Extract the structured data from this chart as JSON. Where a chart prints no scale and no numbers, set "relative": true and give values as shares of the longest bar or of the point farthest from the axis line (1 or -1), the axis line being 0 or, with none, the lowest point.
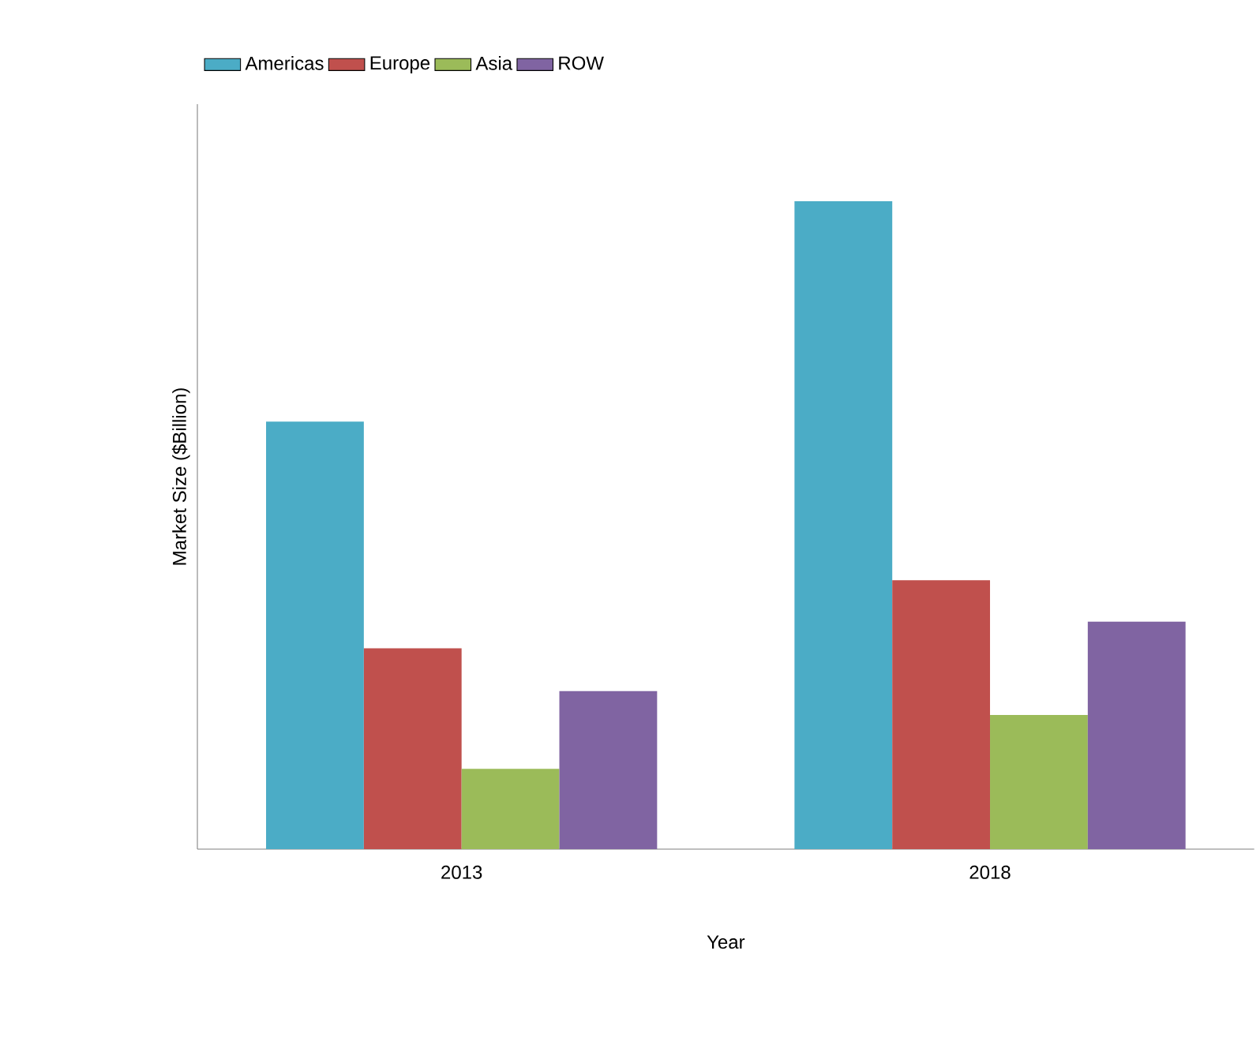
{
  "chart_data": {
    "type": "bar",
    "relative": true,
    "xlabel": "Year",
    "ylabel": "Market Size ($Billion)",
    "categories": [
      "2013",
      "2018"
    ],
    "series": [
      {
        "name": "Americas",
        "color": "#4bacc6",
        "values": [
          0.66,
          1.0
        ]
      },
      {
        "name": "Europe",
        "color": "#c0504d",
        "values": [
          0.31,
          0.415
        ]
      },
      {
        "name": "Asia",
        "color": "#9bbb59",
        "values": [
          0.124,
          0.207
        ]
      },
      {
        "name": "ROW",
        "color": "#8064a2",
        "values": [
          0.244,
          0.351
        ]
      }
    ],
    "legend": "top"
  }
}
